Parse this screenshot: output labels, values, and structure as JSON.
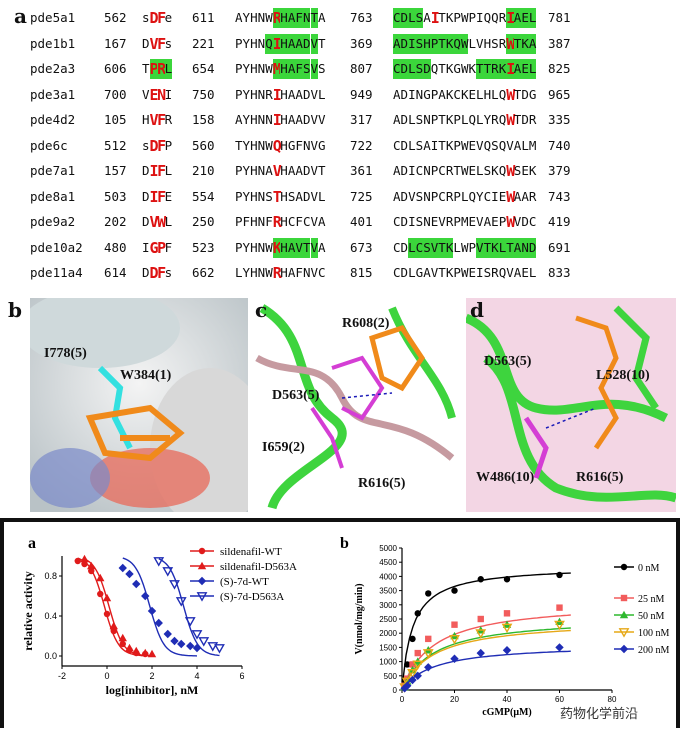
{
  "panel_letters": {
    "a_top": "a",
    "b": "b",
    "c": "c",
    "d": "d",
    "a_bottom": "a",
    "b_bottom": "b"
  },
  "alignment": {
    "rows": [
      {
        "name": "pde5a1",
        "n1": "562",
        "s1": [
          "s",
          "D",
          "F",
          "e"
        ],
        "n2": "611",
        "s2": "AYHNWRHAFNTA",
        "n3": "763",
        "s3": "CDLSAITKPWPIQQRIAEL",
        "n4": "781"
      },
      {
        "name": "pde1b1",
        "n1": "167",
        "s1": [
          "D",
          "V",
          "F",
          "s"
        ],
        "n2": "221",
        "s2": "PYHNQIHAADVT",
        "n3": "369",
        "s3": "ADISHPTKQWLVHSRWTKA",
        "n4": "387"
      },
      {
        "name": "pde2a3",
        "n1": "606",
        "s1": [
          "T",
          "P",
          "R",
          "L"
        ],
        "n2": "654",
        "s2": "PYHNWMHAFSVS",
        "n3": "807",
        "s3": "CDLSDQTKGWKTTRKIAEL",
        "n4": "825"
      },
      {
        "name": "pde3a1",
        "n1": "700",
        "s1": [
          "V",
          "E",
          "N",
          "I"
        ],
        "n2": "750",
        "s2": "PYHNRIHAADVL",
        "n3": "949",
        "s3": "ADINGPAKCKELHLQWTDG",
        "n4": "965"
      },
      {
        "name": "pde4d2",
        "n1": "105",
        "s1": [
          "H",
          "V",
          "F",
          "R"
        ],
        "n2": "158",
        "s2": "AYHNNIHAADVV",
        "n3": "317",
        "s3": "ADLSNPTKPLQLYRQWTDR",
        "n4": "335"
      },
      {
        "name": "pde6c",
        "n1": "512",
        "s1": [
          "s",
          "D",
          "F",
          "P"
        ],
        "n2": "560",
        "s2": "TYHNWQHGFNVG",
        "n3": "722",
        "s3": "CDLSAITKPWEVQSQVALM",
        "n4": "740"
      },
      {
        "name": "pde7a1",
        "n1": "157",
        "s1": [
          "D",
          "I",
          "F",
          "L"
        ],
        "n2": "210",
        "s2": "PYHNAVHAADVT",
        "n3": "361",
        "s3": "ADICNPCRTWELSKQWSEK",
        "n4": "379"
      },
      {
        "name": "pde8a1",
        "n1": "503",
        "s1": [
          "D",
          "I",
          "F",
          "E"
        ],
        "n2": "554",
        "s2": "PYHNSTHSADVL",
        "n3": "725",
        "s3": "ADVSNPCRPLQYCIEWAAR",
        "n4": "743"
      },
      {
        "name": "pde9a2",
        "n1": "202",
        "s1": [
          "D",
          "V",
          "W",
          "L"
        ],
        "n2": "250",
        "s2": "PFHNFRHCFCVA",
        "n3": "401",
        "s3": "CDISNEVRPMEVAEPWVDC",
        "n4": "419"
      },
      {
        "name": "pde10a2",
        "n1": "480",
        "s1": [
          "I",
          "G",
          "P",
          "F"
        ],
        "n2": "523",
        "s2": "PYHNWKHAVTVA",
        "n3": "673",
        "s3": "CDLCSVTKLWPVTKLTAND",
        "n4": "691"
      },
      {
        "name": "pde11a4",
        "n1": "614",
        "s1": [
          "D",
          "D",
          "F",
          "s"
        ],
        "n2": "662",
        "s2": "LYHNWRHAFNVC",
        "n3": "815",
        "s3": "CDLGAVTKPWEISRQVAEL",
        "n4": "833"
      }
    ]
  },
  "panel_b": {
    "labels": [
      "I778(5)",
      "W384(1)"
    ]
  },
  "panel_c": {
    "labels": [
      "R608(2)",
      "D563(5)",
      "I659(2)",
      "R616(5)"
    ]
  },
  "panel_d": {
    "labels": [
      "D563(5)",
      "L528(10)",
      "W486(10)",
      "R616(5)"
    ]
  },
  "chart_data": [
    {
      "type": "scatter",
      "xlabel": "log[inhibitor], nM",
      "ylabel": "relative activity",
      "xticks": [
        "-2",
        "0",
        "2",
        "4",
        "6"
      ],
      "yticks": [
        "0.0",
        "0.4",
        "0.8"
      ],
      "xlim": [
        -2,
        6
      ],
      "ylim": [
        -0.1,
        1.0
      ],
      "legend_position": "top-right",
      "series": [
        {
          "name": "sildenafil-WT",
          "marker": "circle",
          "color": "#e01b1b",
          "x": [
            -1.3,
            -1.0,
            -0.7,
            -0.3,
            0.0,
            0.3,
            0.7,
            1.0,
            1.3,
            1.7
          ],
          "y": [
            0.95,
            0.92,
            0.85,
            0.62,
            0.42,
            0.25,
            0.12,
            0.06,
            0.03,
            0.02
          ]
        },
        {
          "name": "sildenafil-D563A",
          "marker": "triangle-up",
          "color": "#e01b1b",
          "x": [
            -1.0,
            -0.7,
            -0.3,
            0.0,
            0.3,
            0.7,
            1.0,
            1.3,
            1.7,
            2.0
          ],
          "y": [
            0.97,
            0.9,
            0.78,
            0.58,
            0.3,
            0.18,
            0.08,
            0.05,
            0.03,
            0.02
          ]
        },
        {
          "name": "(S)-7d-WT",
          "marker": "diamond",
          "color": "#1f2db5",
          "x": [
            0.7,
            1.0,
            1.3,
            1.7,
            2.0,
            2.3,
            2.7,
            3.0,
            3.3,
            3.7,
            4.0
          ],
          "y": [
            0.88,
            0.82,
            0.72,
            0.6,
            0.45,
            0.33,
            0.22,
            0.15,
            0.12,
            0.1,
            0.08
          ]
        },
        {
          "name": "(S)-7d-D563A",
          "marker": "triangle-down",
          "color": "#1f2db5",
          "x": [
            2.3,
            2.7,
            3.0,
            3.3,
            3.7,
            4.0,
            4.3,
            4.7,
            5.0
          ],
          "y": [
            0.95,
            0.85,
            0.72,
            0.55,
            0.35,
            0.22,
            0.15,
            0.1,
            0.08
          ]
        }
      ]
    },
    {
      "type": "line",
      "xlabel": "cGMP(μM)",
      "ylabel": "V(nmol/mg/min)",
      "xticks": [
        "0",
        "20",
        "40",
        "60",
        "80"
      ],
      "yticks": [
        "0",
        "500",
        "1000",
        "1500",
        "2000",
        "2500",
        "3000",
        "3500",
        "4000",
        "4500",
        "5000"
      ],
      "xlim": [
        0,
        80
      ],
      "ylim": [
        0,
        5000
      ],
      "legend_position": "right",
      "series": [
        {
          "name": "0 nM",
          "marker": "circle",
          "color": "#000000",
          "x": [
            1,
            2,
            4,
            6,
            10,
            20,
            30,
            40,
            60
          ],
          "y": [
            300,
            900,
            1800,
            2700,
            3400,
            3500,
            3900,
            3900,
            4050
          ]
        },
        {
          "name": "25 nM",
          "marker": "square",
          "color": "#f25c5c",
          "x": [
            1,
            2,
            4,
            6,
            10,
            20,
            30,
            40,
            60
          ],
          "y": [
            150,
            400,
            900,
            1300,
            1800,
            2300,
            2500,
            2700,
            2900
          ]
        },
        {
          "name": "50 nM",
          "marker": "triangle-up",
          "color": "#2eb82e",
          "x": [
            1,
            2,
            4,
            6,
            10,
            20,
            30,
            40,
            60
          ],
          "y": [
            100,
            300,
            700,
            1000,
            1400,
            1900,
            2100,
            2300,
            2400
          ]
        },
        {
          "name": "100 nM",
          "marker": "triangle-down",
          "color": "#e6a817",
          "x": [
            1,
            2,
            4,
            6,
            10,
            20,
            30,
            40,
            60
          ],
          "y": [
            100,
            300,
            600,
            900,
            1300,
            1800,
            2000,
            2200,
            2300
          ]
        },
        {
          "name": "200 nM",
          "marker": "diamond",
          "color": "#1f2db5",
          "x": [
            1,
            2,
            4,
            6,
            10,
            20,
            30,
            40,
            60
          ],
          "y": [
            60,
            150,
            350,
            500,
            800,
            1100,
            1300,
            1400,
            1500
          ]
        }
      ]
    }
  ],
  "watermark": {
    "text": "药物化学前沿"
  }
}
